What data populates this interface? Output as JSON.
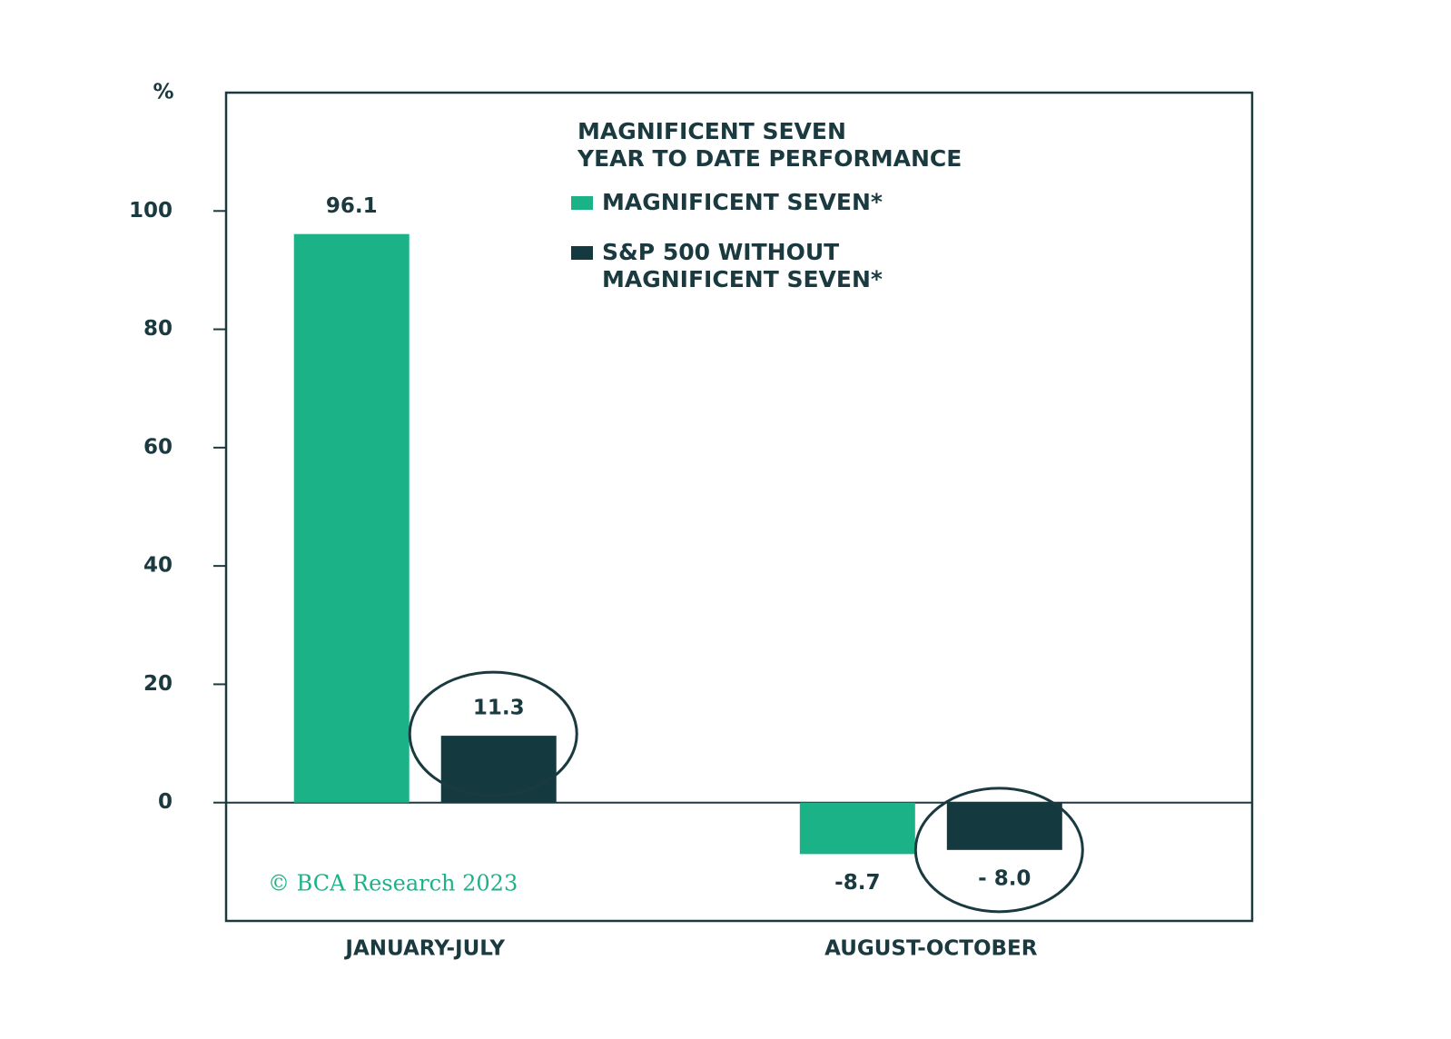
{
  "chart_data": {
    "type": "bar",
    "title_lines": [
      "MAGNIFICENT SEVEN",
      "YEAR TO DATE PERFORMANCE"
    ],
    "y_unit": "%",
    "categories": [
      "JANUARY-JULY",
      "AUGUST-OCTOBER"
    ],
    "series": [
      {
        "name": "MAGNIFICENT SEVEN*",
        "color": "#1bb287",
        "values": [
          96.1,
          -8.7
        ],
        "value_labels": [
          "96.1",
          "-8.7"
        ]
      },
      {
        "name": "S&P 500 WITHOUT MAGNIFICENT SEVEN*",
        "color": "#143a40",
        "values": [
          11.3,
          -8.0
        ],
        "value_labels": [
          "11.3",
          "- 8.0"
        ]
      }
    ],
    "ylim": [
      -20,
      120
    ],
    "yticks": [
      0,
      20,
      40,
      60,
      80,
      100
    ],
    "annotation": "© BCA Research 2023"
  }
}
